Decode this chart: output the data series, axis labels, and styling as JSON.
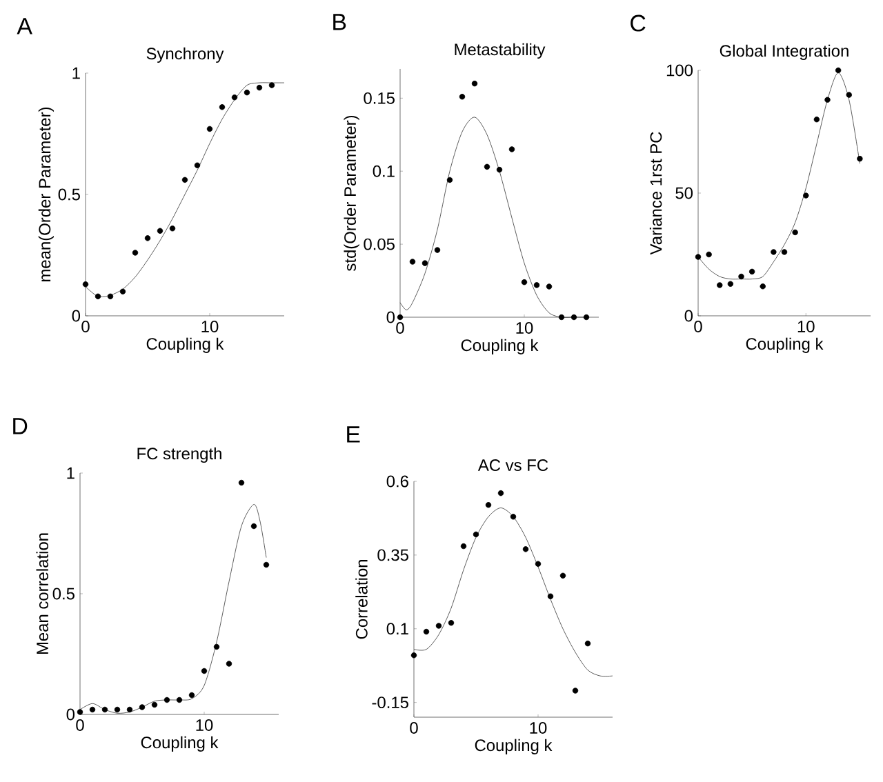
{
  "chart_data": [
    {
      "type": "scatter",
      "title": "Synchrony",
      "xlabel": "Coupling k",
      "ylabel": "mean(Order Parameter)",
      "annotations": [
        "A"
      ],
      "xlim": [
        0,
        16
      ],
      "ylim": [
        0,
        1
      ],
      "xticks": [
        0,
        10
      ],
      "yticks": [
        0,
        0.5,
        1
      ],
      "series": [
        {
          "marker": "circle",
          "color": "#000000",
          "x": [
            0,
            1,
            2,
            3,
            4,
            5,
            6,
            7,
            8,
            9,
            10,
            11,
            12,
            13,
            14,
            15
          ],
          "values": [
            0.13,
            0.08,
            0.08,
            0.1,
            0.26,
            0.32,
            0.35,
            0.36,
            0.56,
            0.62,
            0.77,
            0.86,
            0.9,
            0.92,
            0.94,
            0.95
          ]
        },
        {
          "type": "line",
          "color": "#333333",
          "x": [
            0,
            1,
            2,
            3,
            4,
            5,
            6,
            7,
            8,
            9,
            10,
            11,
            12,
            13,
            14,
            15,
            16
          ],
          "values": [
            0.12,
            0.08,
            0.085,
            0.11,
            0.16,
            0.23,
            0.31,
            0.4,
            0.5,
            0.6,
            0.71,
            0.81,
            0.89,
            0.95,
            0.96,
            0.96,
            0.96
          ]
        }
      ]
    },
    {
      "type": "scatter",
      "title": "Metastability",
      "xlabel": "Coupling k",
      "ylabel": "std(Order Parameter)",
      "annotations": [
        "B"
      ],
      "xlim": [
        0,
        16
      ],
      "ylim": [
        0,
        0.17
      ],
      "xticks": [
        0,
        10
      ],
      "yticks": [
        0,
        0.05,
        0.1,
        0.15
      ],
      "series": [
        {
          "marker": "circle",
          "color": "#000000",
          "x": [
            0,
            1,
            2,
            3,
            4,
            5,
            6,
            7,
            8,
            9,
            10,
            11,
            12,
            13,
            14,
            15
          ],
          "values": [
            0,
            0.038,
            0.037,
            0.046,
            0.094,
            0.151,
            0.16,
            0.103,
            0.101,
            0.115,
            0.024,
            0.022,
            0.021,
            0,
            0,
            0
          ]
        },
        {
          "type": "line",
          "color": "#333333",
          "x": [
            0,
            0.5,
            1,
            2,
            3,
            4,
            5,
            6,
            7,
            8,
            9,
            10,
            11,
            12,
            13,
            14,
            15
          ],
          "values": [
            0.01,
            0.005,
            0.01,
            0.03,
            0.06,
            0.1,
            0.127,
            0.137,
            0.125,
            0.1,
            0.068,
            0.037,
            0.015,
            0.003,
            0,
            0,
            0
          ]
        }
      ]
    },
    {
      "type": "scatter",
      "title": "Global Integration",
      "xlabel": "Coupling k",
      "ylabel": "Variance 1rst PC",
      "annotations": [
        "C"
      ],
      "xlim": [
        0,
        16
      ],
      "ylim": [
        0,
        100
      ],
      "xticks": [
        0,
        10
      ],
      "yticks": [
        0,
        50,
        100
      ],
      "series": [
        {
          "marker": "circle",
          "color": "#000000",
          "x": [
            0,
            1,
            2,
            3,
            4,
            5,
            6,
            7,
            8,
            9,
            10,
            11,
            12,
            13,
            14,
            15
          ],
          "values": [
            24,
            25,
            12.5,
            13,
            16,
            18,
            12,
            26,
            26,
            34,
            49,
            80,
            88,
            100,
            90,
            64
          ]
        },
        {
          "type": "line",
          "color": "#333333",
          "x": [
            0,
            1,
            2,
            3,
            4,
            5,
            6,
            7,
            8,
            9,
            10,
            11,
            12,
            13,
            14,
            15
          ],
          "values": [
            24,
            19,
            16,
            15,
            15,
            15,
            16,
            22,
            29,
            38,
            52,
            70,
            88,
            99,
            88,
            62
          ]
        }
      ]
    },
    {
      "type": "scatter",
      "title": "FC strength",
      "xlabel": "Coupling k",
      "ylabel": "Mean correlation",
      "annotations": [
        "D"
      ],
      "xlim": [
        0,
        16
      ],
      "ylim": [
        0,
        1
      ],
      "xticks": [
        0,
        10
      ],
      "yticks": [
        0,
        0.5,
        1
      ],
      "series": [
        {
          "marker": "circle",
          "color": "#000000",
          "x": [
            0,
            1,
            2,
            3,
            4,
            5,
            6,
            7,
            8,
            9,
            10,
            11,
            12,
            13,
            14,
            15
          ],
          "values": [
            0.01,
            0.02,
            0.02,
            0.02,
            0.02,
            0.03,
            0.04,
            0.06,
            0.06,
            0.08,
            0.18,
            0.28,
            0.21,
            0.96,
            0.78,
            0.62
          ]
        },
        {
          "type": "line",
          "color": "#333333",
          "x": [
            0,
            1,
            2,
            3,
            4,
            5,
            6,
            7,
            8,
            9,
            10,
            11,
            12,
            13,
            14,
            14.5,
            15
          ],
          "values": [
            0.02,
            0.045,
            0.02,
            0.005,
            0.01,
            0.03,
            0.055,
            0.06,
            0.06,
            0.065,
            0.12,
            0.3,
            0.55,
            0.78,
            0.87,
            0.8,
            0.65
          ]
        }
      ]
    },
    {
      "type": "scatter",
      "title": "AC vs FC",
      "xlabel": "Coupling k",
      "ylabel": "Correlation",
      "annotations": [
        "E"
      ],
      "xlim": [
        0,
        16
      ],
      "ylim": [
        -0.2,
        0.6
      ],
      "xticks": [
        0,
        10
      ],
      "yticks": [
        -0.15,
        0.1,
        0.35,
        0.6
      ],
      "series": [
        {
          "marker": "circle",
          "color": "#000000",
          "x": [
            0,
            1,
            2,
            3,
            4,
            5,
            6,
            7,
            8,
            9,
            10,
            11,
            12,
            13,
            14
          ],
          "values": [
            0.01,
            0.09,
            0.11,
            0.12,
            0.38,
            0.42,
            0.52,
            0.56,
            0.48,
            0.37,
            0.32,
            0.21,
            0.28,
            -0.11,
            0.05
          ]
        },
        {
          "type": "line",
          "color": "#333333",
          "x": [
            0,
            1,
            2,
            3,
            4,
            5,
            6,
            7,
            8,
            9,
            10,
            11,
            12,
            13,
            14,
            15,
            16
          ],
          "values": [
            0.03,
            0.03,
            0.08,
            0.17,
            0.3,
            0.41,
            0.48,
            0.51,
            0.48,
            0.41,
            0.31,
            0.2,
            0.1,
            0.02,
            -0.04,
            -0.06,
            -0.06
          ]
        }
      ]
    }
  ]
}
